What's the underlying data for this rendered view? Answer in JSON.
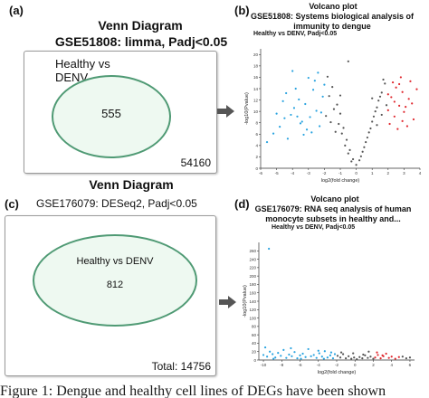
{
  "panel_a": {
    "label": "(a)",
    "title": "Venn Diagram",
    "subtitle": "GSE51808: limma, Padj<0.05",
    "set_label_line1": "Healthy vs",
    "set_label_line2": "DENV",
    "count": "555",
    "total": "54160",
    "colors": {
      "circle_fill": "#eef9f1",
      "circle_stroke": "#4f9a74"
    }
  },
  "panel_b": {
    "label": "(b)",
    "title": "Volcano plot",
    "subtitle_line1": "GSE51808: Systems biological analysis of",
    "subtitle_line2": "immunity to dengue",
    "comparison": "Healthy vs DENV, Padj<0.05",
    "ylabel": "-log10(Pvalue)",
    "xlabel": "log2(fold change)"
  },
  "panel_c": {
    "label": "(c)",
    "title": "Venn Diagram",
    "subtitle": "GSE176079: DESeq2, Padj<0.05",
    "set_label": "Healthy vs DENV",
    "count": "812",
    "total": "Total: 14756"
  },
  "panel_d": {
    "label": "(d)",
    "title": "Volcano plot",
    "subtitle_line1": "GSE176079: RNA seq analysis of human",
    "subtitle_line2": "monocyte subsets in healthy and...",
    "comparison": "Healthy vs DENV, Padj<0.05",
    "ylabel": "-log10(Pvalue)",
    "xlabel": "log2(fold change)"
  },
  "caption": "Figure 1: Dengue and healthy cell lines of DEGs have been shown",
  "colors": {
    "down": "#29a3e0",
    "up": "#e0282e",
    "ns": "#555555",
    "arrow": "#555555"
  },
  "chart_data": [
    {
      "type": "scatter",
      "title": "Volcano plot",
      "xlabel": "log2(fold change)",
      "ylabel": "-log10(Pvalue)",
      "xlim": [
        -6,
        4
      ],
      "ylim": [
        0,
        21
      ],
      "x_ticks": [
        "-6",
        "-5",
        "-4",
        "-3",
        "-2",
        "-1",
        "0",
        "1",
        "2",
        "3",
        "4"
      ],
      "y_ticks": [
        "0",
        "2",
        "4",
        "6",
        "8",
        "10",
        "12",
        "14",
        "16",
        "18",
        "20"
      ],
      "series": [
        {
          "color": "#29a3e0",
          "points": [
            [
              -5.2,
              6.1
            ],
            [
              -4.8,
              7.3
            ],
            [
              -4.5,
              8.8
            ],
            [
              -4.1,
              9.4
            ],
            [
              -3.9,
              10.6
            ],
            [
              -3.6,
              12.1
            ],
            [
              -3.4,
              8.2
            ],
            [
              -3.2,
              11.3
            ],
            [
              -2.9,
              9.0
            ],
            [
              -2.7,
              13.8
            ],
            [
              -2.5,
              10.1
            ],
            [
              -2.3,
              7.4
            ],
            [
              -2.1,
              12.6
            ],
            [
              -4.3,
              5.2
            ],
            [
              -3.1,
              6.8
            ],
            [
              -2.6,
              15.4
            ],
            [
              -3.8,
              14.0
            ],
            [
              -2.4,
              16.8
            ],
            [
              -5.6,
              4.6
            ],
            [
              -4.0,
              17.1
            ],
            [
              -3.3,
              5.9
            ],
            [
              -2.2,
              9.8
            ],
            [
              -3.5,
              7.9
            ],
            [
              -4.6,
              11.8
            ],
            [
              -2.8,
              6.3
            ],
            [
              -5.0,
              9.6
            ],
            [
              -3.0,
              15.9
            ],
            [
              -2.0,
              14.7
            ],
            [
              -4.4,
              13.2
            ],
            [
              -3.7,
              9.1
            ]
          ]
        },
        {
          "color": "#e0282e",
          "points": [
            [
              2.0,
              10.2
            ],
            [
              2.2,
              12.5
            ],
            [
              2.4,
              9.1
            ],
            [
              2.5,
              14.2
            ],
            [
              2.7,
              11.0
            ],
            [
              2.9,
              13.4
            ],
            [
              3.1,
              10.8
            ],
            [
              3.3,
              12.2
            ],
            [
              3.6,
              8.6
            ],
            [
              2.3,
              15.1
            ],
            [
              2.8,
              16.0
            ],
            [
              3.0,
              9.9
            ],
            [
              2.1,
              7.8
            ],
            [
              2.6,
              6.9
            ],
            [
              3.4,
              15.3
            ],
            [
              2.4,
              11.7
            ],
            [
              3.8,
              13.9
            ],
            [
              2.0,
              13.0
            ],
            [
              3.2,
              7.4
            ],
            [
              2.7,
              14.8
            ],
            [
              2.9,
              8.3
            ],
            [
              3.5,
              11.4
            ]
          ]
        },
        {
          "color": "#555555",
          "points": [
            [
              -1.8,
              16.1
            ],
            [
              -1.5,
              14.3
            ],
            [
              -1.2,
              11.2
            ],
            [
              -1.0,
              9.6
            ],
            [
              -0.8,
              7.1
            ],
            [
              -0.6,
              5.0
            ],
            [
              -0.4,
              3.2
            ],
            [
              -0.2,
              1.6
            ],
            [
              0.0,
              0.6
            ],
            [
              0.2,
              1.4
            ],
            [
              0.4,
              2.9
            ],
            [
              0.6,
              4.6
            ],
            [
              0.8,
              6.3
            ],
            [
              1.0,
              8.2
            ],
            [
              1.2,
              10.0
            ],
            [
              1.4,
              11.9
            ],
            [
              1.6,
              13.3
            ],
            [
              1.8,
              14.9
            ],
            [
              -1.7,
              12.7
            ],
            [
              -1.4,
              10.4
            ],
            [
              -1.1,
              7.8
            ],
            [
              -0.9,
              6.1
            ],
            [
              -0.7,
              4.0
            ],
            [
              -0.5,
              2.6
            ],
            [
              -0.3,
              1.2
            ],
            [
              0.3,
              2.1
            ],
            [
              0.5,
              3.7
            ],
            [
              0.7,
              5.4
            ],
            [
              0.9,
              7.0
            ],
            [
              1.1,
              9.1
            ],
            [
              1.3,
              10.7
            ],
            [
              1.5,
              12.6
            ],
            [
              1.7,
              15.6
            ],
            [
              -1.9,
              9.2
            ],
            [
              -1.6,
              8.1
            ],
            [
              -1.3,
              6.4
            ],
            [
              1.9,
              11.1
            ],
            [
              1.6,
              9.4
            ],
            [
              1.3,
              7.6
            ],
            [
              -1.0,
              12.8
            ],
            [
              1.0,
              12.3
            ],
            [
              -0.5,
              18.8
            ]
          ]
        }
      ]
    },
    {
      "type": "scatter",
      "title": "Volcano plot",
      "xlabel": "log2(fold change)",
      "ylabel": "-log10(Pvalue)",
      "xlim": [
        -10.5,
        6.5
      ],
      "ylim": [
        0,
        280
      ],
      "x_ticks": [
        "-10",
        "-8",
        "-6",
        "-4",
        "-2",
        "0",
        "2",
        "4",
        "6"
      ],
      "y_ticks": [
        "0",
        "20",
        "40",
        "60",
        "80",
        "100",
        "120",
        "140",
        "160",
        "180",
        "200",
        "220",
        "240",
        "260"
      ],
      "series": [
        {
          "color": "#29a3e0",
          "points": [
            [
              -10,
              12
            ],
            [
              -9.6,
              8
            ],
            [
              -9.3,
              20
            ],
            [
              -9.0,
              14
            ],
            [
              -8.7,
              6
            ],
            [
              -8.4,
              17
            ],
            [
              -8.1,
              10
            ],
            [
              -7.8,
              24
            ],
            [
              -7.5,
              5
            ],
            [
              -7.2,
              13
            ],
            [
              -6.9,
              9
            ],
            [
              -6.6,
              19
            ],
            [
              -6.3,
              4
            ],
            [
              -6.0,
              11
            ],
            [
              -5.7,
              15
            ],
            [
              -5.4,
              7
            ],
            [
              -5.1,
              26
            ],
            [
              -4.8,
              9
            ],
            [
              -4.5,
              12
            ],
            [
              -4.2,
              5
            ],
            [
              -3.9,
              16
            ],
            [
              -3.6,
              8
            ],
            [
              -3.3,
              21
            ],
            [
              -3.0,
              6
            ],
            [
              -2.7,
              11
            ],
            [
              -2.4,
              4
            ],
            [
              -2.2,
              14
            ],
            [
              -9.8,
              30
            ],
            [
              -8.9,
              3
            ],
            [
              -7.0,
              28
            ],
            [
              -5.9,
              3
            ],
            [
              -4.0,
              22
            ],
            [
              -3.4,
              3
            ],
            [
              -2.6,
              18
            ],
            [
              -9.4,
              265
            ]
          ]
        },
        {
          "color": "#e0282e",
          "points": [
            [
              2.2,
              6
            ],
            [
              2.5,
              12
            ],
            [
              2.8,
              4
            ],
            [
              3.1,
              9
            ],
            [
              3.4,
              15
            ],
            [
              3.7,
              5
            ],
            [
              4.0,
              8
            ],
            [
              4.4,
              3
            ],
            [
              4.8,
              7
            ],
            [
              2.4,
              18
            ],
            [
              3.0,
              11
            ]
          ]
        },
        {
          "color": "#555555",
          "points": [
            [
              -1.9,
              10
            ],
            [
              -1.6,
              6
            ],
            [
              -1.3,
              14
            ],
            [
              -1.0,
              4
            ],
            [
              -0.7,
              9
            ],
            [
              -0.4,
              3
            ],
            [
              -0.1,
              6
            ],
            [
              0.2,
              2
            ],
            [
              0.5,
              7
            ],
            [
              0.8,
              4
            ],
            [
              1.1,
              11
            ],
            [
              1.4,
              5
            ],
            [
              1.7,
              8
            ],
            [
              2.0,
              3
            ],
            [
              -1.5,
              18
            ],
            [
              0.9,
              13
            ],
            [
              -0.2,
              16
            ],
            [
              1.5,
              20
            ],
            [
              5.2,
              8
            ],
            [
              5.6,
              4
            ],
            [
              6.0,
              6
            ]
          ]
        }
      ]
    }
  ]
}
